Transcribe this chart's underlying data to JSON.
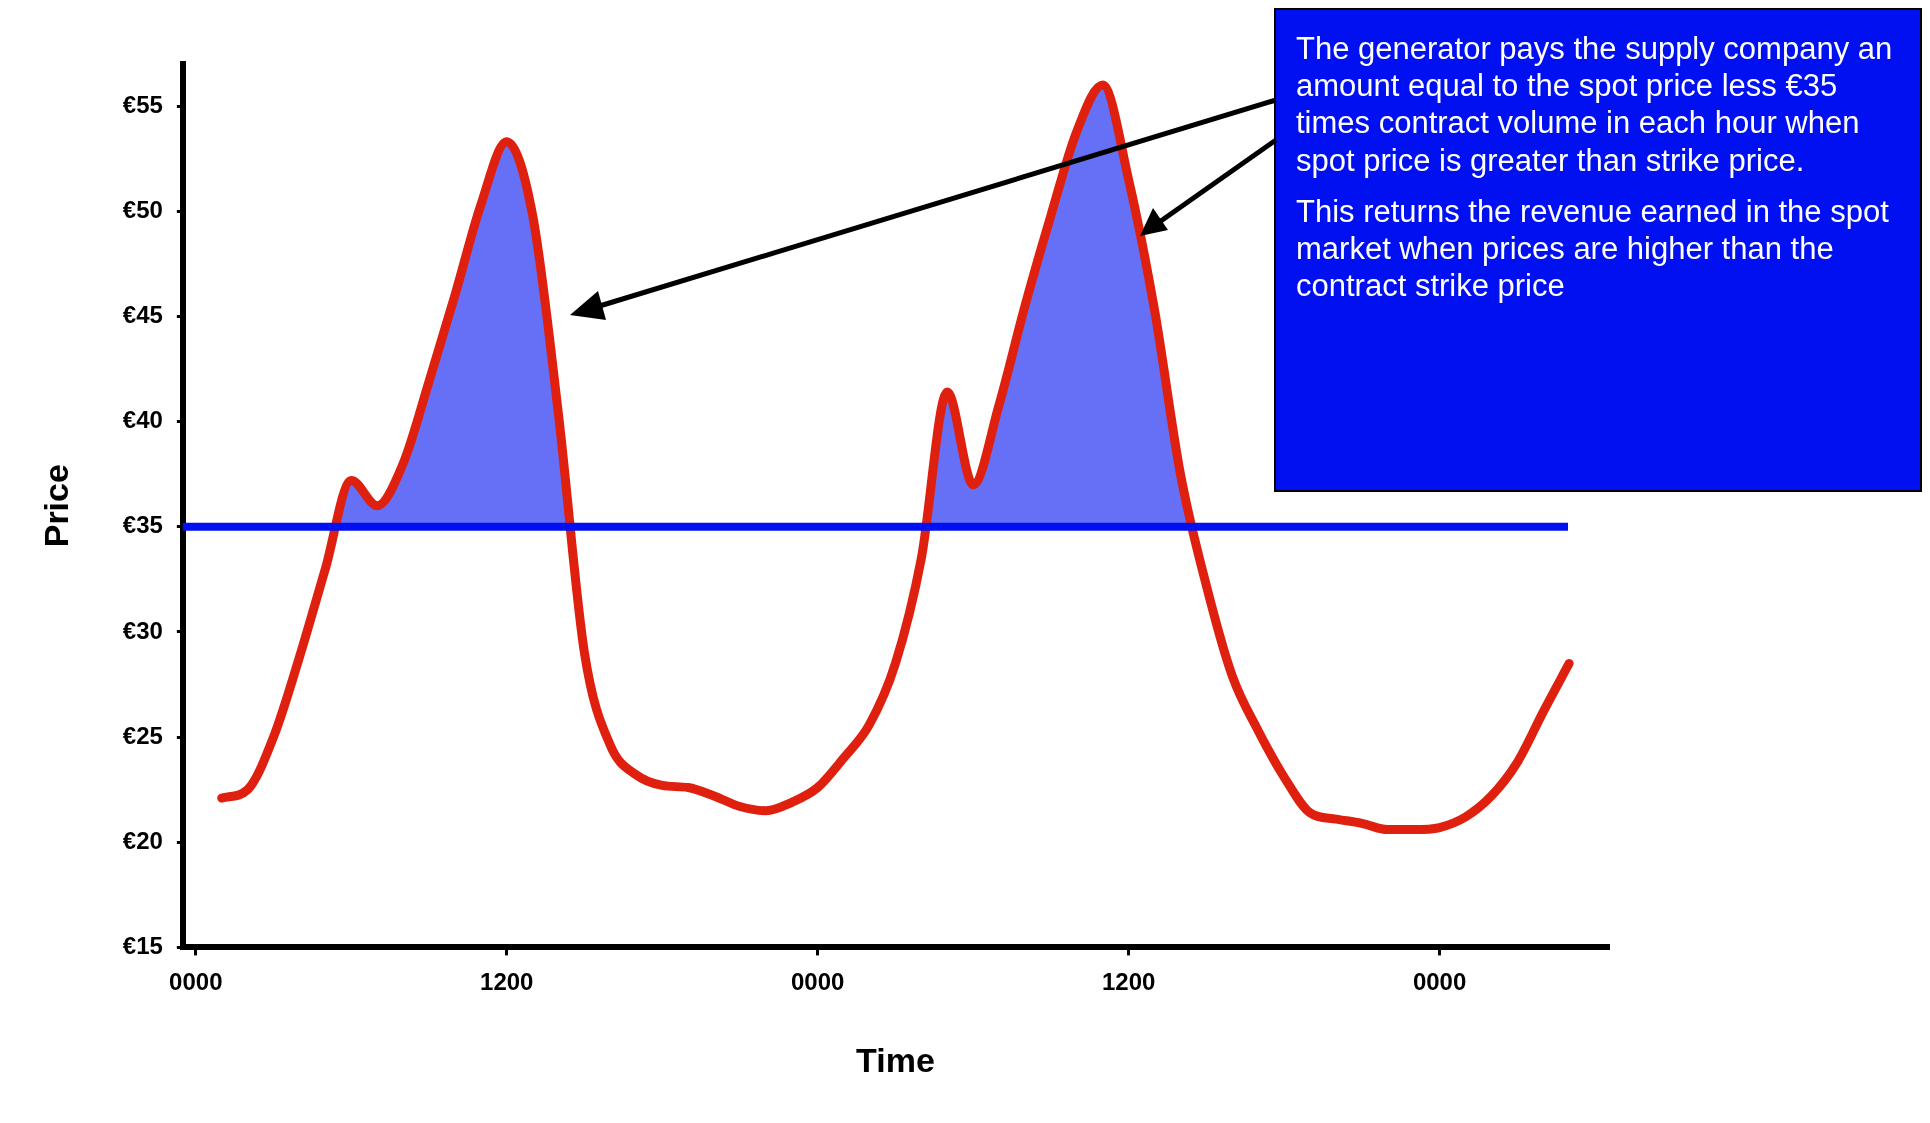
{
  "chart_data": {
    "type": "line",
    "xlabel": "Time",
    "ylabel": "Price",
    "categories": [
      "0000",
      null,
      null,
      null,
      null,
      null,
      null,
      null,
      null,
      null,
      null,
      null,
      "1200",
      null,
      null,
      null,
      null,
      null,
      null,
      null,
      null,
      null,
      null,
      null,
      "0000",
      null,
      null,
      null,
      null,
      null,
      null,
      null,
      null,
      null,
      null,
      null,
      "1200",
      null,
      null,
      null,
      null,
      null,
      null,
      null,
      null,
      null,
      null,
      null,
      "0000",
      null,
      null,
      null,
      null,
      null,
      null
    ],
    "series": [
      {
        "color": "#e0200f",
        "values": [
          null,
          22.1,
          22.5,
          25.0,
          28.8,
          33.0,
          37.2,
          36.0,
          38.0,
          41.9,
          46.0,
          50.3,
          53.3,
          49.8,
          40.3,
          29.0,
          24.6,
          23.2,
          22.7,
          22.6,
          22.2,
          21.7,
          21.5,
          21.9,
          22.6,
          24.0,
          25.6,
          28.5,
          33.5,
          41.4,
          37.0,
          40.8,
          45.5,
          49.8,
          53.8,
          56.0,
          51.5,
          45.3,
          37.5,
          32.2,
          27.9,
          25.3,
          23.1,
          21.4,
          21.1,
          20.9,
          20.6,
          20.6,
          20.7,
          21.2,
          22.2,
          23.8,
          26.2,
          28.5,
          null
        ]
      }
    ],
    "ylim": [
      15,
      57
    ],
    "yticks": [
      {
        "value": 15,
        "label": "€15"
      },
      {
        "value": 20,
        "label": "€20"
      },
      {
        "value": 25,
        "label": "€25"
      },
      {
        "value": 30,
        "label": "€30"
      },
      {
        "value": 35,
        "label": "€35"
      },
      {
        "value": 40,
        "label": "€40"
      },
      {
        "value": 45,
        "label": "€45"
      },
      {
        "value": 50,
        "label": "€50"
      },
      {
        "value": 55,
        "label": "€55"
      }
    ],
    "ref_lines": [
      {
        "axis": "y",
        "value": 35,
        "color": "#0010f0"
      }
    ],
    "grid": false,
    "legend": false,
    "marker": "none",
    "line_style": "solid",
    "annotations": [
      "The generator pays the supply company an amount equal to the spot price less €35 times contract volume in each hour when spot price is greater than strike price.",
      "This returns the revenue earned in the spot market when prices are higher than the contract strike price"
    ]
  }
}
